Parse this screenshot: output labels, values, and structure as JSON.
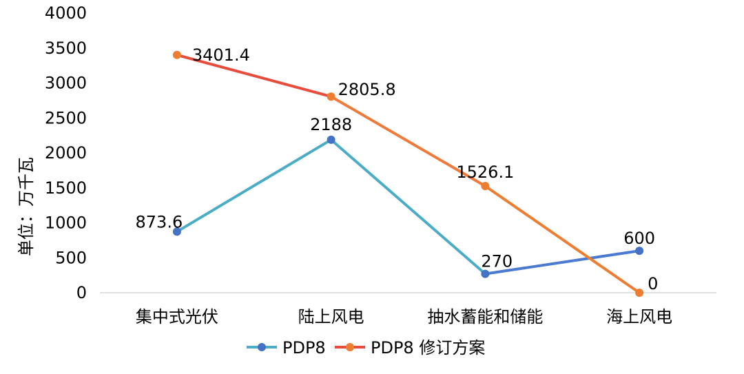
{
  "chart_data": {
    "type": "line",
    "categories": [
      "集中式光伏",
      "陆上风电",
      "抽水蓄能和储能",
      "海上风电"
    ],
    "ylabel": "单位：万千瓦",
    "ylim": [
      0,
      4000
    ],
    "yticks": [
      0,
      500,
      1000,
      1500,
      2000,
      2500,
      3000,
      3500,
      4000
    ],
    "legend_position": "bottom",
    "series": [
      {
        "name": "PDP8",
        "values": [
          873.6,
          2188,
          270,
          600
        ],
        "labels": [
          "873.6",
          "2188",
          "270",
          "600"
        ],
        "line_colors": [
          "#4BACC6",
          "#4BACC6",
          "#4A7BD0"
        ],
        "marker_color": "#4472C4",
        "legend_line_color": "#4BACC6"
      },
      {
        "name": "PDP8 修订方案",
        "values": [
          3401.4,
          2805.8,
          1526.1,
          0
        ],
        "labels": [
          "3401.4",
          "2805.8",
          "1526.1",
          "0"
        ],
        "line_colors": [
          "#E84C3D",
          "#EE7A3B",
          "#ED7D31"
        ],
        "marker_color": "#ED7D31",
        "legend_line_color": "#E84C3D"
      }
    ]
  }
}
